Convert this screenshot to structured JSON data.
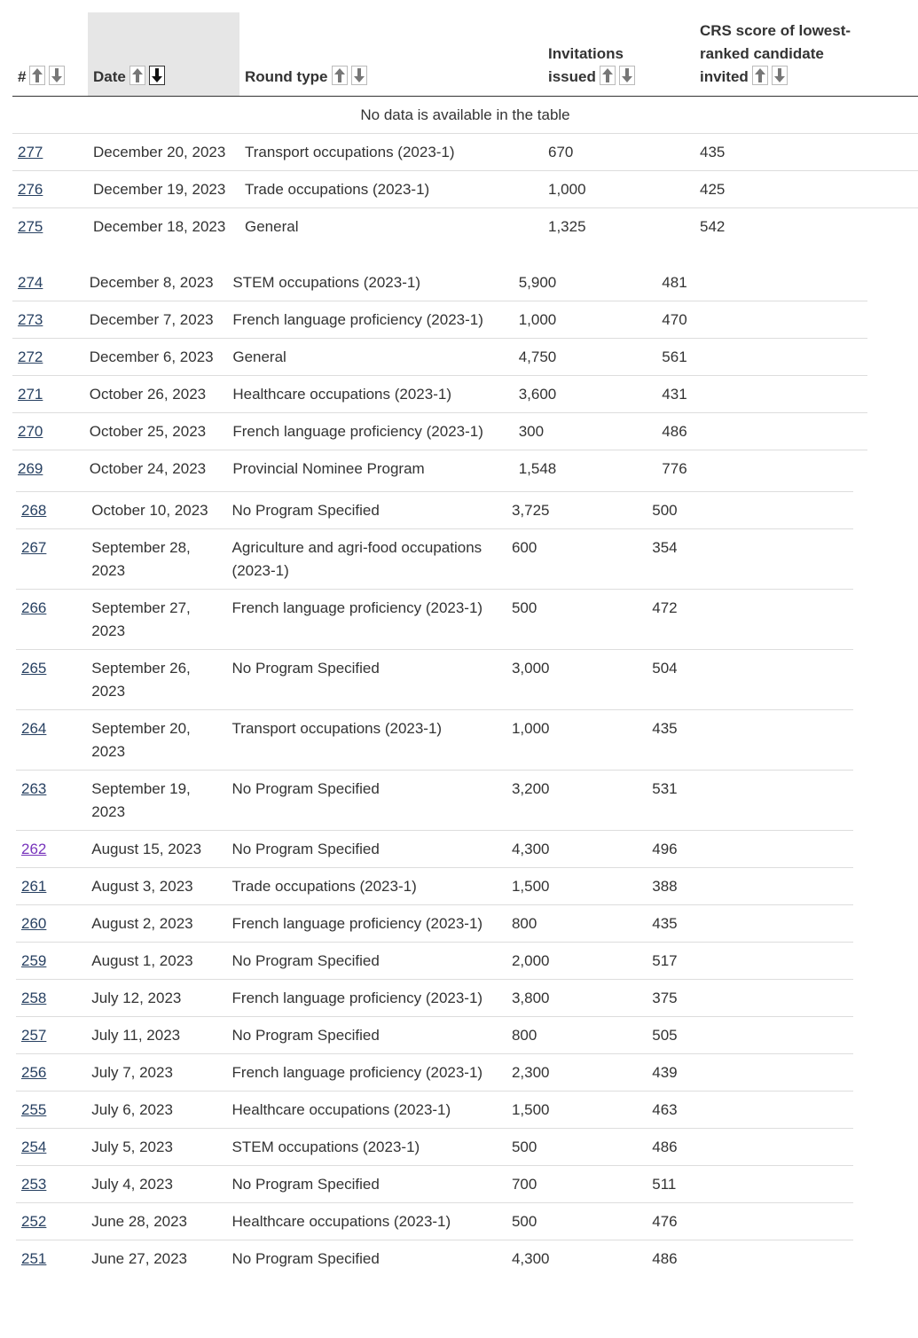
{
  "table": {
    "columns": [
      "#",
      "Date",
      "Round type",
      "Invitations issued",
      "CRS score of lowest-ranked candidate invited"
    ],
    "empty_message": "No data is available in the table",
    "rows": [
      [
        "277",
        "December 20, 2023",
        "Transport occupations (2023-1)",
        "670",
        "435"
      ],
      [
        "276",
        "December 19, 2023",
        "Trade occupations (2023-1)",
        "1,000",
        "425"
      ],
      [
        "275",
        "December 18, 2023",
        "General",
        "1,325",
        "542"
      ],
      [
        "274",
        "December 8, 2023",
        "STEM occupations (2023-1)",
        "5,900",
        "481"
      ],
      [
        "273",
        "December 7, 2023",
        "French language proficiency (2023-1)",
        "1,000",
        "470"
      ],
      [
        "272",
        "December 6, 2023",
        "General",
        "4,750",
        "561"
      ],
      [
        "271",
        "October 26, 2023",
        "Healthcare occupations (2023-1)",
        "3,600",
        "431"
      ],
      [
        "270",
        "October 25, 2023",
        "French language proficiency (2023-1)",
        "300",
        "486"
      ],
      [
        "269",
        "October 24, 2023",
        "Provincial Nominee Program",
        "1,548",
        "776"
      ],
      [
        "268",
        "October 10, 2023",
        "No Program Specified",
        "3,725",
        "500"
      ],
      [
        "267",
        "September 28, 2023",
        "Agriculture and agri-food occupations (2023-1)",
        "600",
        "354"
      ],
      [
        "266",
        "September 27, 2023",
        "French language proficiency (2023-1)",
        "500",
        "472"
      ],
      [
        "265",
        "September 26, 2023",
        "No Program Specified",
        "3,000",
        "504"
      ],
      [
        "264",
        "September 20, 2023",
        "Transport occupations (2023-1)",
        "1,000",
        "435"
      ],
      [
        "263",
        "September 19, 2023",
        "No Program Specified",
        "3,200",
        "531"
      ],
      [
        "262",
        "August 15, 2023",
        "No Program Specified",
        "4,300",
        "496"
      ],
      [
        "261",
        "August 3, 2023",
        "Trade occupations (2023-1)",
        "1,500",
        "388"
      ],
      [
        "260",
        "August 2, 2023",
        "French language proficiency (2023-1)",
        "800",
        "435"
      ],
      [
        "259",
        "August 1, 2023",
        "No Program Specified",
        "2,000",
        "517"
      ],
      [
        "258",
        "July 12, 2023",
        "French language proficiency (2023-1)",
        "3,800",
        "375"
      ],
      [
        "257",
        "July 11, 2023",
        "No Program Specified",
        "800",
        "505"
      ],
      [
        "256",
        "July 7, 2023",
        "French language proficiency (2023-1)",
        "2,300",
        "439"
      ],
      [
        "255",
        "July 6, 2023",
        "Healthcare occupations (2023-1)",
        "1,500",
        "463"
      ],
      [
        "254",
        "July 5, 2023",
        "STEM occupations (2023-1)",
        "500",
        "486"
      ],
      [
        "253",
        "July 4, 2023",
        "No Program Specified",
        "700",
        "511"
      ],
      [
        "252",
        "June 28, 2023",
        "Healthcare occupations (2023-1)",
        "500",
        "476"
      ],
      [
        "251",
        "June 27, 2023",
        "No Program Specified",
        "4,300",
        "486"
      ]
    ]
  }
}
